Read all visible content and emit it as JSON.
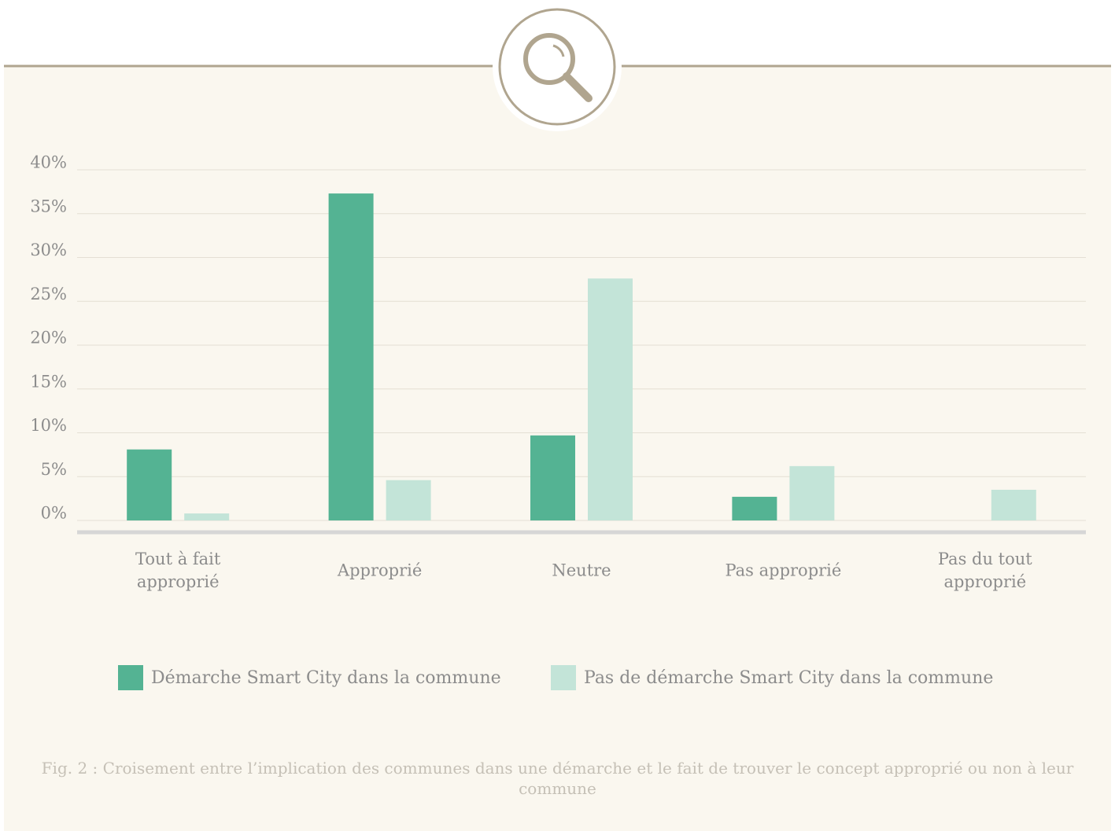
{
  "chart_data": {
    "type": "bar",
    "categories": [
      "Tout à fait approprié",
      "Approprié",
      "Neutre",
      "Pas approprié",
      "Pas du tout approprié"
    ],
    "series": [
      {
        "name": "Démarche Smart City dans la commune",
        "color": "#54b393",
        "values": [
          8.1,
          37.3,
          9.7,
          2.7,
          0
        ]
      },
      {
        "name": "Pas de démarche Smart City dans la commune",
        "color": "#c3e4d8",
        "values": [
          0.8,
          4.6,
          27.6,
          6.2,
          3.5
        ]
      }
    ],
    "ylim": [
      0,
      40
    ],
    "yticks": [
      {
        "value": 0,
        "label": "0%"
      },
      {
        "value": 5,
        "label": "5%"
      },
      {
        "value": 10,
        "label": "10%"
      },
      {
        "value": 15,
        "label": "15%"
      },
      {
        "value": 20,
        "label": "20%"
      },
      {
        "value": 25,
        "label": "25%"
      },
      {
        "value": 30,
        "label": "30%"
      },
      {
        "value": 35,
        "label": "35%"
      },
      {
        "value": 40,
        "label": "40%"
      }
    ],
    "grid": true,
    "caption": "Fig. 2 : Croisement entre l’implication des communes dans une démarche et le fait de trouver le concept approprié ou non à leur commune"
  }
}
